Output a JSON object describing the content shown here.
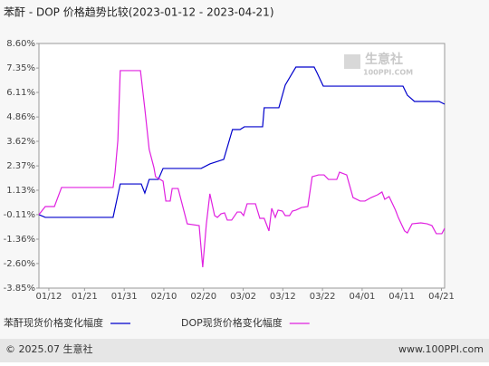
{
  "chart_data": {
    "type": "line",
    "title": "苯酐 - DOP 价格趋势比较(2023-01-12 - 2023-04-21)",
    "xlim": [
      -2.5,
      99.8
    ],
    "xticks": [
      {
        "value": 0,
        "label": "01/12"
      },
      {
        "value": 9,
        "label": "01/21"
      },
      {
        "value": 19,
        "label": "01/31"
      },
      {
        "value": 29,
        "label": "02/10"
      },
      {
        "value": 39,
        "label": "02/20"
      },
      {
        "value": 49,
        "label": "03/02"
      },
      {
        "value": 59,
        "label": "03/12"
      },
      {
        "value": 69,
        "label": "03/22"
      },
      {
        "value": 79,
        "label": "04/01"
      },
      {
        "value": 89,
        "label": "04/11"
      },
      {
        "value": 99,
        "label": "04/21"
      }
    ],
    "ylim": [
      -3.85,
      8.6
    ],
    "yticks": [
      {
        "value": 8.6,
        "label": "8.60%"
      },
      {
        "value": 7.35,
        "label": "7.35%"
      },
      {
        "value": 6.11,
        "label": "6.11%"
      },
      {
        "value": 4.86,
        "label": "4.86%"
      },
      {
        "value": 3.62,
        "label": "3.62%"
      },
      {
        "value": 2.37,
        "label": "2.37%"
      },
      {
        "value": 1.13,
        "label": "1.13%"
      },
      {
        "value": -0.11,
        "label": "-0.11%"
      },
      {
        "value": -1.36,
        "label": "-1.36%"
      },
      {
        "value": -2.6,
        "label": "-2.60%"
      },
      {
        "value": -3.85,
        "label": "-3.85%"
      }
    ],
    "grid": false,
    "series": [
      {
        "name": "苯酐现货价格变化幅度",
        "color": "#0000cc",
        "x": [
          -2.5,
          -0.9,
          16.2,
          18.0,
          23.3,
          24.2,
          25.3,
          27.6,
          28.8,
          38.4,
          40.6,
          44.1,
          46.3,
          48.2,
          49.3,
          53.9,
          54.3,
          58.0,
          59.6,
          61.2,
          62.3,
          66.9,
          67.6,
          69.2,
          89.3,
          90.4,
          92.2,
          98.4,
          99.8
        ],
        "values": [
          -0.11,
          -0.25,
          -0.25,
          1.45,
          1.45,
          0.99,
          1.68,
          1.68,
          2.24,
          2.24,
          2.47,
          2.7,
          4.22,
          4.22,
          4.36,
          4.36,
          5.33,
          5.33,
          6.48,
          7.03,
          7.4,
          7.4,
          7.12,
          6.43,
          6.43,
          5.97,
          5.65,
          5.65,
          5.51
        ]
      },
      {
        "name": "DOP现货价格变化幅度",
        "color": "#e020e0",
        "x": [
          -2.5,
          -0.9,
          1.4,
          3.2,
          16.2,
          16.7,
          17.4,
          18.0,
          19.2,
          23.1,
          24.2,
          25.3,
          26.5,
          26.9,
          28.8,
          29.5,
          30.6,
          31.1,
          32.6,
          33.3,
          34.9,
          37.9,
          38.8,
          39.7,
          40.6,
          41.8,
          42.5,
          43.4,
          44.3,
          45.0,
          46.1,
          47.5,
          48.4,
          49.1,
          50.0,
          52.1,
          53.2,
          54.3,
          55.5,
          56.2,
          57.1,
          57.8,
          58.9,
          59.6,
          60.7,
          61.4,
          62.3,
          63.7,
          65.3,
          66.4,
          68.0,
          69.4,
          70.5,
          71.5,
          72.6,
          73.3,
          75.1,
          76.7,
          78.5,
          79.7,
          81.3,
          82.9,
          84.0,
          84.7,
          85.8,
          87.4,
          88.1,
          89.7,
          90.4,
          91.6,
          93.8,
          95.4,
          96.6,
          97.7,
          99.1,
          99.8
        ],
        "values": [
          -0.11,
          0.3,
          0.3,
          1.27,
          1.27,
          2.05,
          3.67,
          7.22,
          7.22,
          7.22,
          5.28,
          3.21,
          2.28,
          1.82,
          1.59,
          0.58,
          0.58,
          1.22,
          1.22,
          0.67,
          -0.58,
          -0.67,
          -2.79,
          -0.62,
          0.95,
          -0.16,
          -0.25,
          -0.07,
          -0.02,
          -0.39,
          -0.39,
          0.02,
          0.02,
          -0.16,
          0.44,
          0.44,
          -0.3,
          -0.3,
          -0.94,
          0.21,
          -0.25,
          0.12,
          0.07,
          -0.16,
          -0.16,
          0.07,
          0.12,
          0.25,
          0.3,
          1.82,
          1.91,
          1.91,
          1.68,
          1.68,
          1.68,
          2.05,
          1.91,
          0.76,
          0.58,
          0.58,
          0.76,
          0.9,
          1.04,
          0.67,
          0.81,
          0.12,
          -0.25,
          -0.94,
          -1.04,
          -0.58,
          -0.53,
          -0.58,
          -0.67,
          -1.08,
          -1.08,
          -0.81
        ]
      }
    ],
    "watermark": {
      "name": "生意社",
      "site": "100PPI.COM"
    },
    "footer": {
      "copyright": "© 2025.07 生意社",
      "url": "www.100PPI.com"
    }
  }
}
